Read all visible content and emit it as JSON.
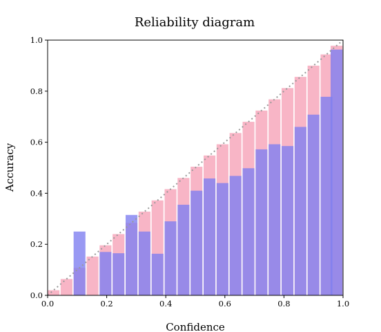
{
  "chart_data": {
    "type": "bar",
    "title": "Reliability diagram",
    "xlabel": "Confidence",
    "ylabel": "Accuracy",
    "xlim": [
      0,
      1.0
    ],
    "ylim": [
      0,
      1.0
    ],
    "grid": false,
    "reference_line": "diagonal",
    "bin_centers": [
      0.02,
      0.064,
      0.108,
      0.152,
      0.196,
      0.24,
      0.284,
      0.328,
      0.372,
      0.416,
      0.46,
      0.504,
      0.548,
      0.592,
      0.636,
      0.68,
      0.724,
      0.768,
      0.812,
      0.856,
      0.9,
      0.944,
      0.978
    ],
    "bin_width": 0.04,
    "series": [
      {
        "kind": "gap",
        "color": "#f7a8bc",
        "values": [
          0.02,
          0.064,
          0.108,
          0.152,
          0.196,
          0.24,
          0.284,
          0.328,
          0.372,
          0.416,
          0.46,
          0.504,
          0.548,
          0.592,
          0.636,
          0.68,
          0.724,
          0.768,
          0.812,
          0.856,
          0.9,
          0.944,
          0.978
        ]
      },
      {
        "kind": "accuracy",
        "color": "#8080f0",
        "values": [
          0.0,
          0.0,
          0.25,
          0.0,
          0.17,
          0.165,
          0.315,
          0.25,
          0.163,
          0.29,
          0.355,
          0.41,
          0.458,
          0.44,
          0.468,
          0.498,
          0.572,
          0.592,
          0.585,
          0.66,
          0.708,
          0.778,
          0.963
        ]
      }
    ],
    "xticks": [
      "0.0",
      "0.2",
      "0.4",
      "0.6",
      "0.8",
      "1.0"
    ],
    "yticks": [
      "0.0",
      "0.2",
      "0.4",
      "0.6",
      "0.8",
      "1.0"
    ]
  }
}
